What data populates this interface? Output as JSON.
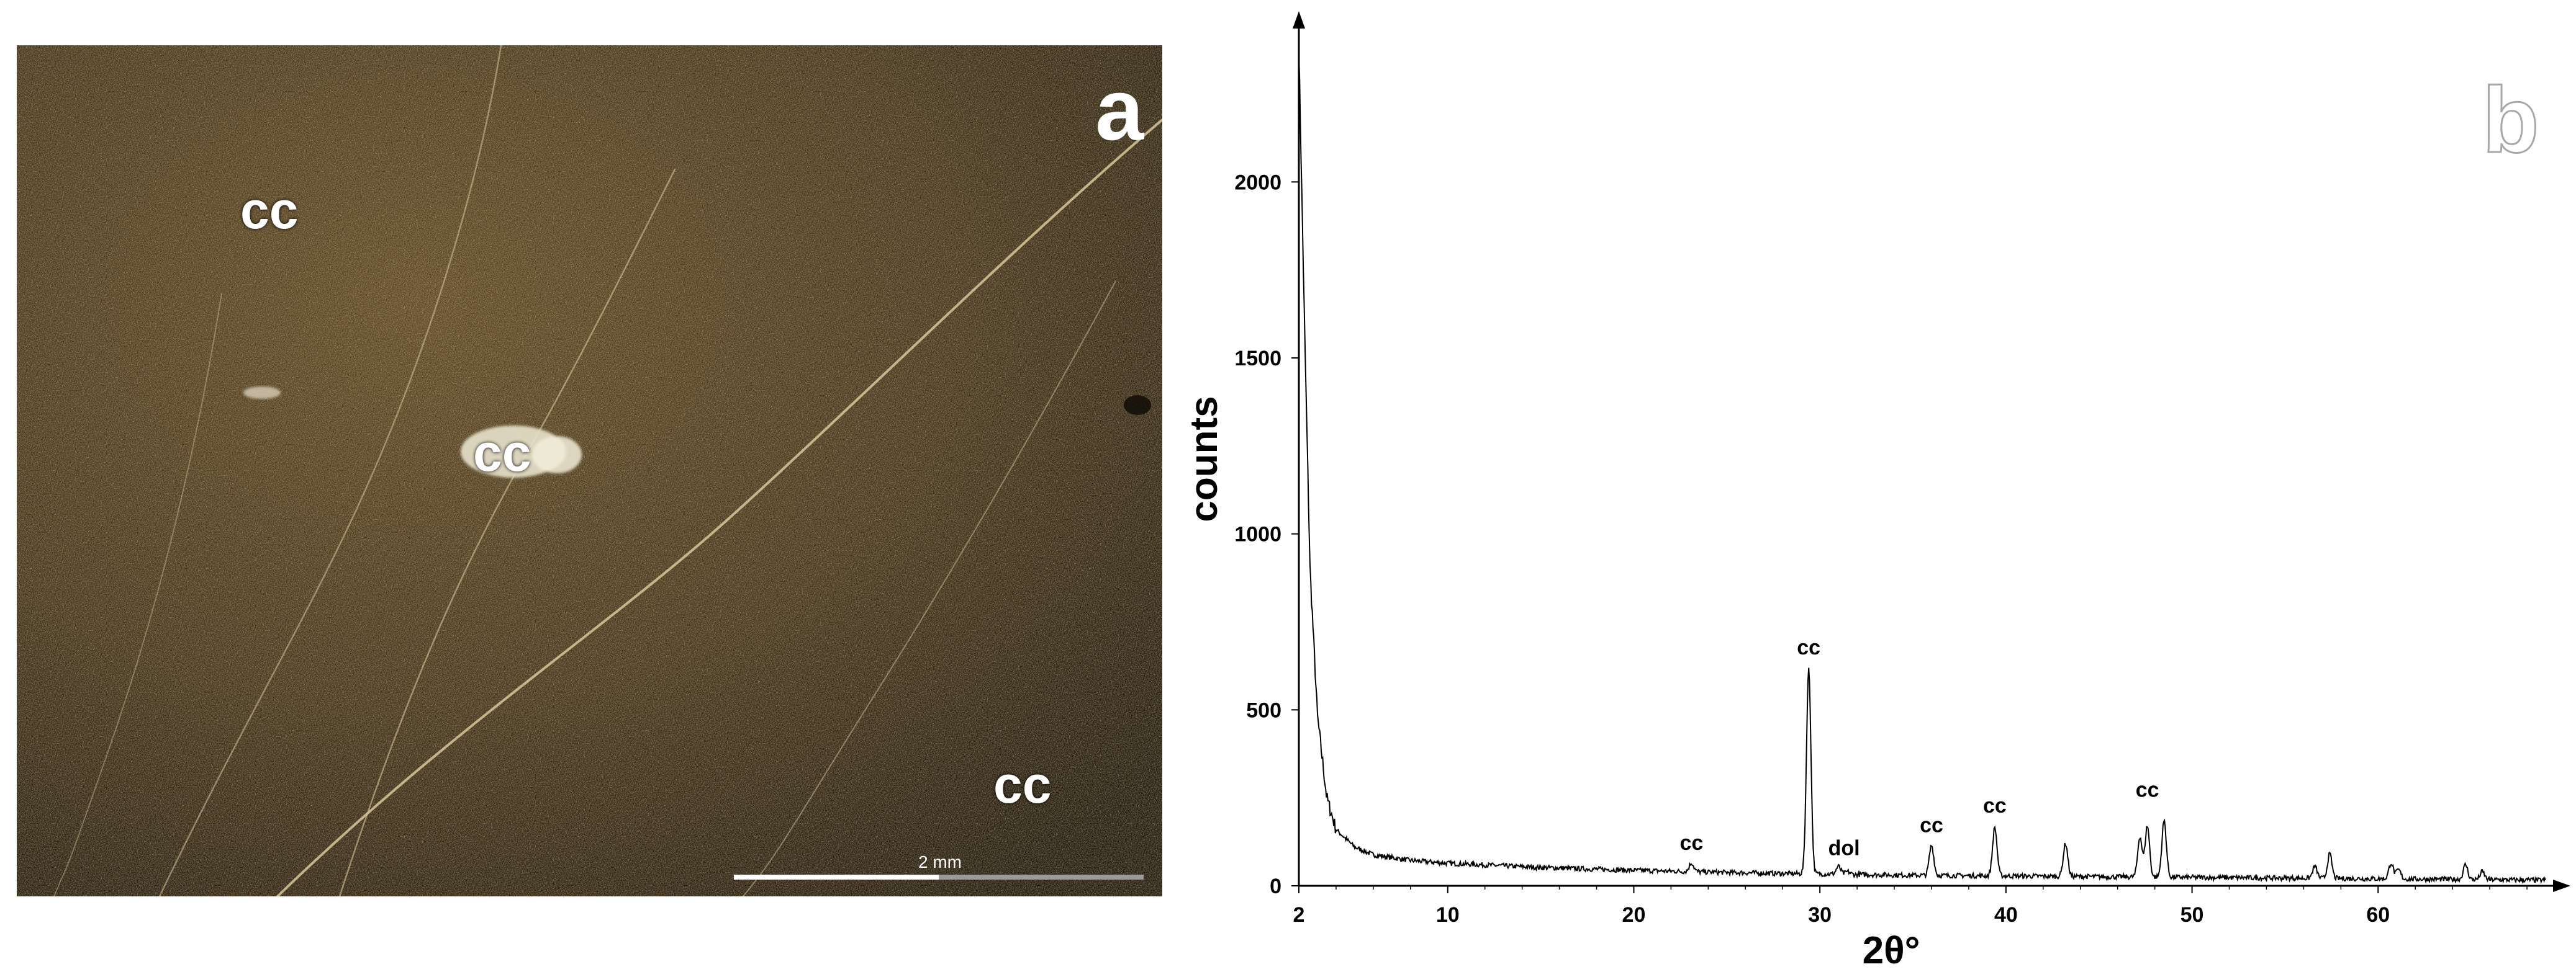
{
  "micrograph": {
    "panel_label": "a",
    "labels": [
      "cc",
      "cc",
      "cc",
      "cc"
    ],
    "scale_bar_text": "2 mm"
  },
  "chart_data": {
    "type": "line",
    "panel_label": "b",
    "xlabel": "2θ°",
    "ylabel": "counts",
    "xlim": [
      2,
      69
    ],
    "ylim": [
      0,
      2450
    ],
    "xticks": [
      2,
      10,
      20,
      30,
      40,
      50,
      60
    ],
    "yticks": [
      0,
      500,
      1000,
      1500,
      2000
    ],
    "grid": false,
    "baseline": [
      [
        2,
        2380
      ],
      [
        2.3,
        1600
      ],
      [
        2.6,
        900
      ],
      [
        3,
        480
      ],
      [
        3.5,
        250
      ],
      [
        4,
        160
      ],
      [
        5,
        110
      ],
      [
        6,
        88
      ],
      [
        8,
        72
      ],
      [
        10,
        64
      ],
      [
        15,
        52
      ],
      [
        20,
        44
      ],
      [
        25,
        38
      ],
      [
        28,
        35
      ],
      [
        35,
        30
      ],
      [
        45,
        26
      ],
      [
        55,
        22
      ],
      [
        65,
        18
      ],
      [
        69,
        16
      ]
    ],
    "peaks": [
      {
        "x": 23.1,
        "y": 65
      },
      {
        "x": 29.4,
        "y": 615
      },
      {
        "x": 31.0,
        "y": 55
      },
      {
        "x": 31.5,
        "y": 40
      },
      {
        "x": 36.0,
        "y": 115
      },
      {
        "x": 39.4,
        "y": 165
      },
      {
        "x": 43.2,
        "y": 120
      },
      {
        "x": 47.2,
        "y": 140
      },
      {
        "x": 47.6,
        "y": 170
      },
      {
        "x": 48.5,
        "y": 185
      },
      {
        "x": 56.6,
        "y": 55
      },
      {
        "x": 57.4,
        "y": 90
      },
      {
        "x": 60.7,
        "y": 65
      },
      {
        "x": 61.1,
        "y": 45
      },
      {
        "x": 64.7,
        "y": 60
      },
      {
        "x": 65.6,
        "y": 40
      }
    ],
    "annotations": [
      {
        "text": "cc",
        "x": 23.1,
        "y": 85
      },
      {
        "text": "cc",
        "x": 29.4,
        "y": 640
      },
      {
        "text": "dol",
        "x": 31.3,
        "y": 70
      },
      {
        "text": "cc",
        "x": 36.0,
        "y": 135
      },
      {
        "text": "cc",
        "x": 39.4,
        "y": 190
      },
      {
        "text": "cc",
        "x": 47.6,
        "y": 235
      }
    ]
  }
}
